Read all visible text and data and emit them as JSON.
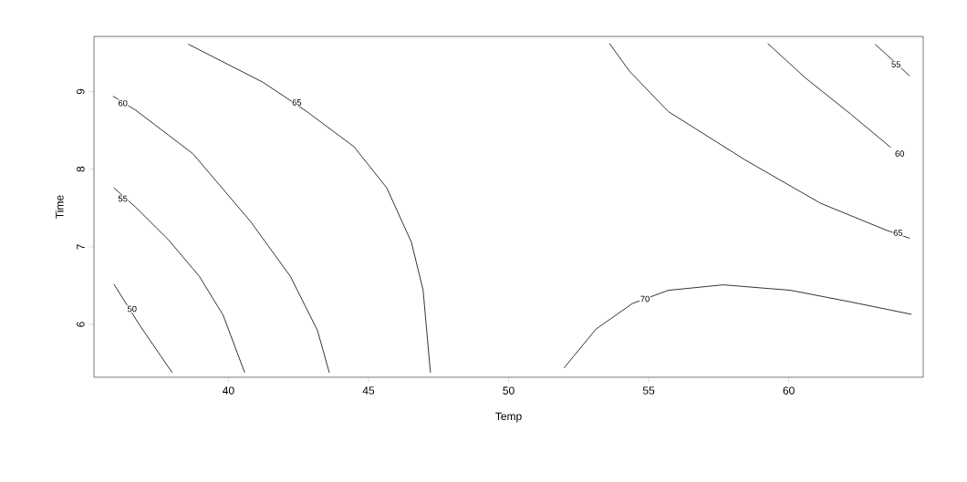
{
  "chart_data": {
    "type": "line",
    "xlabel": "Temp",
    "ylabel": "Time",
    "xlim": [
      35.2,
      64.8
    ],
    "ylim": [
      5.32,
      9.71
    ],
    "xticks": [
      40,
      45,
      50,
      55,
      60
    ],
    "yticks": [
      6,
      7,
      8,
      9
    ],
    "marker": "none",
    "line_style": "solid",
    "series": [
      {
        "color": "#000000",
        "x": [
          35.91,
          36.85,
          37.99
        ],
        "values": [
          6.52,
          5.98,
          5.38
        ]
      },
      {
        "color": "#000000",
        "x": [
          35.91,
          36.69,
          37.86,
          38.96,
          39.81,
          40.58
        ],
        "values": [
          7.76,
          7.51,
          7.09,
          6.62,
          6.12,
          5.38
        ]
      },
      {
        "color": "#000000",
        "x": [
          35.88,
          36.69,
          38.73,
          40.78,
          42.21,
          43.18,
          43.6
        ],
        "values": [
          8.94,
          8.76,
          8.2,
          7.33,
          6.62,
          5.92,
          5.38
        ]
      },
      {
        "color": "#000000",
        "x": [
          38.57,
          41.23,
          42.73,
          44.48,
          45.65,
          46.53,
          46.95,
          47.21
        ],
        "values": [
          9.61,
          9.12,
          8.76,
          8.29,
          7.76,
          7.06,
          6.44,
          5.38
        ]
      },
      {
        "color": "#000000",
        "x": [
          51.98,
          53.12,
          54.42,
          55.71,
          57.66,
          60.06,
          62.21,
          64.38
        ],
        "values": [
          5.44,
          5.94,
          6.27,
          6.44,
          6.51,
          6.44,
          6.29,
          6.13
        ]
      },
      {
        "color": "#000000",
        "x": [
          53.6,
          54.32,
          55.71,
          58.44,
          61.14,
          63.51,
          64.32
        ],
        "values": [
          9.62,
          9.26,
          8.74,
          8.12,
          7.56,
          7.21,
          7.11
        ]
      },
      {
        "color": "#000000",
        "x": [
          59.25,
          60.58,
          62.21,
          63.64
        ],
        "values": [
          9.62,
          9.18,
          8.71,
          8.28
        ]
      },
      {
        "color": "#000000",
        "x": [
          63.08,
          63.51,
          64.32
        ],
        "values": [
          9.61,
          9.47,
          9.2
        ]
      }
    ],
    "annotations": [
      {
        "text": "50",
        "x": 36.56,
        "y": 6.2
      },
      {
        "text": "55",
        "x": 36.23,
        "y": 7.62
      },
      {
        "text": "60",
        "x": 36.23,
        "y": 8.85
      },
      {
        "text": "65",
        "x": 42.44,
        "y": 8.86
      },
      {
        "text": "70",
        "x": 54.87,
        "y": 6.33
      },
      {
        "text": "65",
        "x": 63.9,
        "y": 7.18
      },
      {
        "text": "60",
        "x": 63.96,
        "y": 8.2
      },
      {
        "text": "55",
        "x": 63.83,
        "y": 9.35
      }
    ]
  }
}
